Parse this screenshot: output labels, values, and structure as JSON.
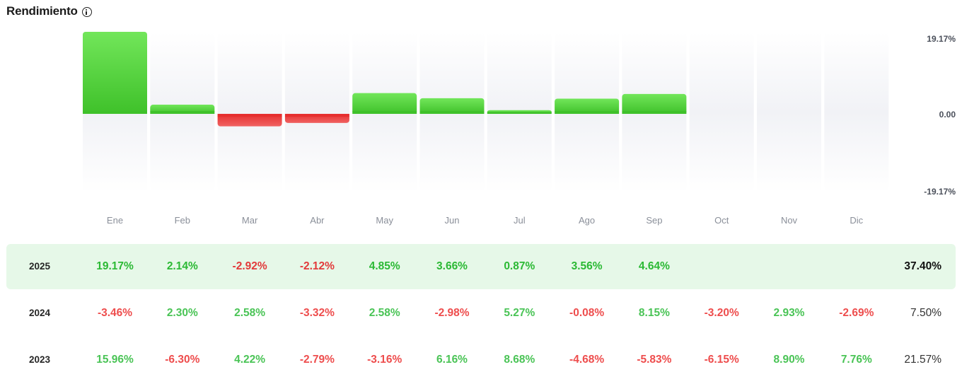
{
  "header": {
    "title": "Rendimiento",
    "info_icon": "info-icon"
  },
  "chart_data": {
    "type": "bar",
    "categories": [
      "Ene",
      "Feb",
      "Mar",
      "Abr",
      "May",
      "Jun",
      "Jul",
      "Ago",
      "Sep",
      "Oct",
      "Nov",
      "Dic"
    ],
    "values": [
      19.17,
      2.14,
      -2.92,
      -2.12,
      4.85,
      3.66,
      0.87,
      3.56,
      4.64,
      null,
      null,
      null
    ],
    "ylim": [
      -19.17,
      19.17
    ],
    "y_ticks": [
      "19.17%",
      "0.00",
      "-19.17%"
    ],
    "grid": false,
    "colors": {
      "positive": "#4cd03d",
      "negative": "#e33b3b",
      "column_bg": "#f2f3f7"
    }
  },
  "table": {
    "rows": [
      {
        "year": "2025",
        "values": [
          "19.17%",
          "2.14%",
          "-2.92%",
          "-2.12%",
          "4.85%",
          "3.66%",
          "0.87%",
          "3.56%",
          "4.64%",
          "",
          "",
          ""
        ],
        "total": "37.40%"
      },
      {
        "year": "2024",
        "values": [
          "-3.46%",
          "2.30%",
          "2.58%",
          "-3.32%",
          "2.58%",
          "-2.98%",
          "5.27%",
          "-0.08%",
          "8.15%",
          "-3.20%",
          "2.93%",
          "-2.69%"
        ],
        "total": "7.50%"
      },
      {
        "year": "2023",
        "values": [
          "15.96%",
          "-6.30%",
          "4.22%",
          "-2.79%",
          "-3.16%",
          "6.16%",
          "8.68%",
          "-4.68%",
          "-5.83%",
          "-6.15%",
          "8.90%",
          "7.76%"
        ],
        "total": "21.57%"
      }
    ]
  },
  "colors": {
    "highlight_row": "#e6f8e8",
    "positive_text": "#2bb934",
    "negative_text": "#e23a3a"
  }
}
